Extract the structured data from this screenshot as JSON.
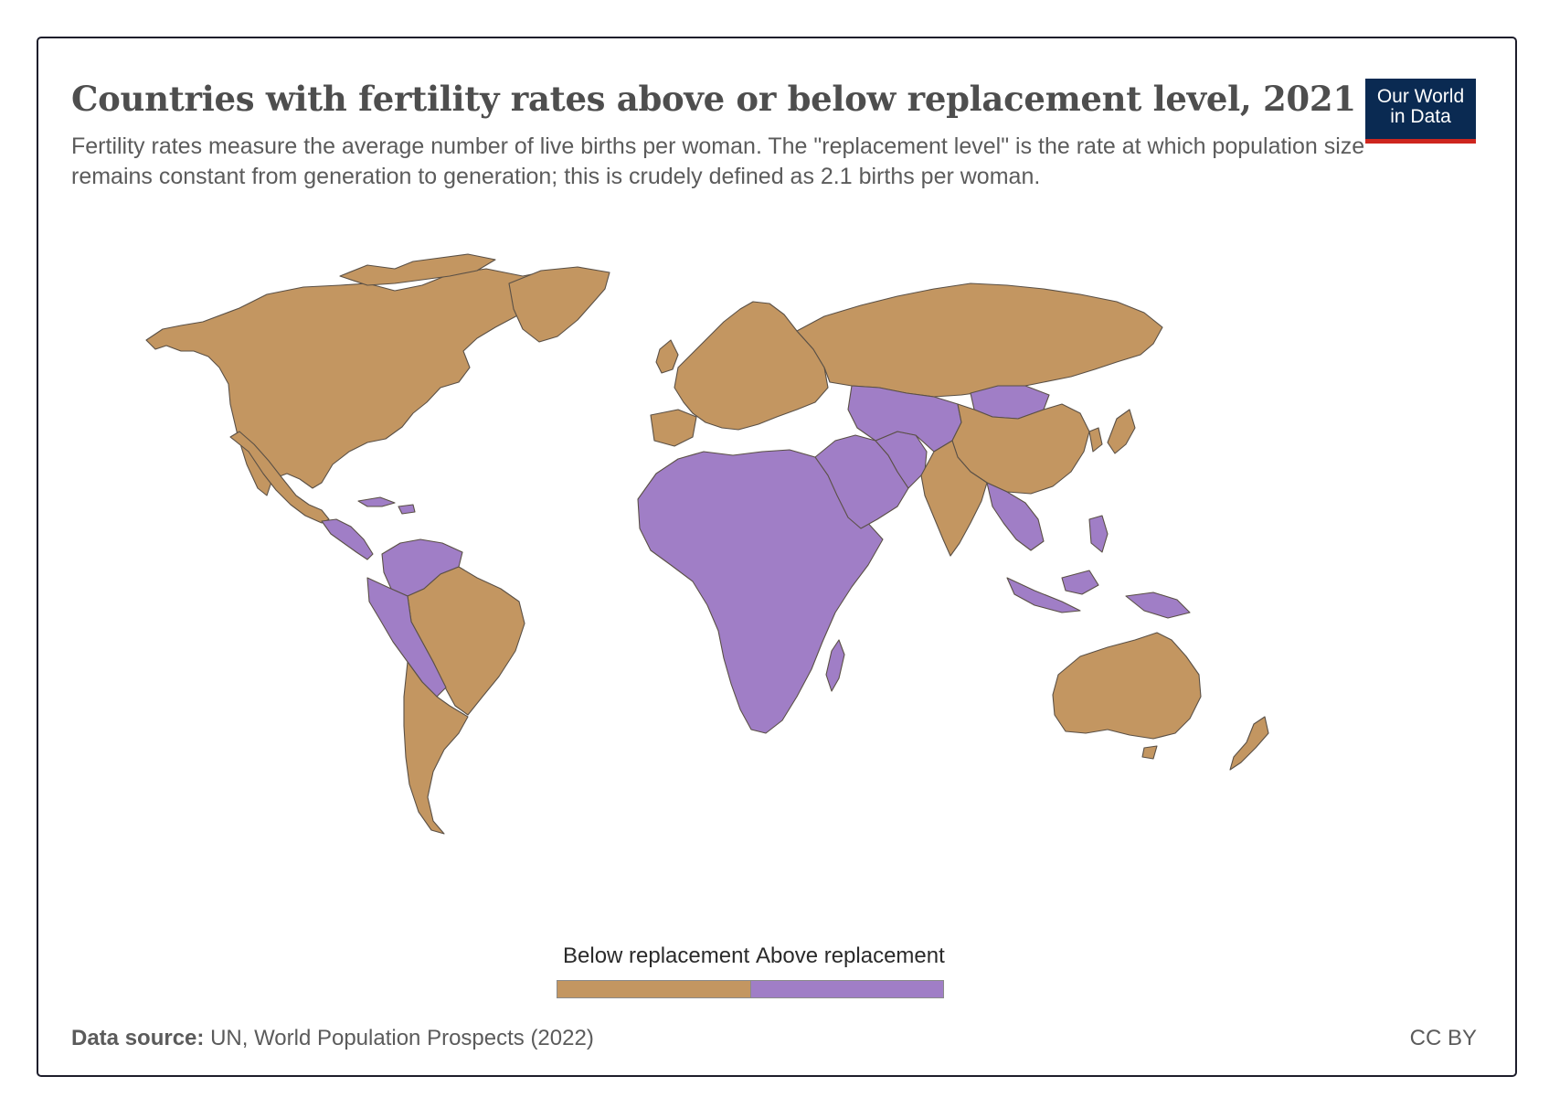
{
  "title": "Countries with fertility rates above or below replacement level, 2021",
  "subtitle": "Fertility rates measure the average number of live births per woman. The \"replacement level\" is the rate at which population size remains constant from generation to generation; this is crudely defined as 2.1 births per woman.",
  "logo": {
    "line1": "Our World",
    "line2": "in Data"
  },
  "legend": {
    "below_label": "Below replacement",
    "above_label": "Above replacement",
    "below_color": "#c39661",
    "above_color": "#a07ec6"
  },
  "footer": {
    "source_label": "Data source:",
    "source_text": "UN, World Population Prospects (2022)",
    "license": "CC BY"
  },
  "map_data": {
    "type": "choropleth",
    "year": 2021,
    "categories": [
      "Below replacement",
      "Above replacement"
    ],
    "regions": [
      {
        "name": "North America",
        "category": "Below replacement"
      },
      {
        "name": "Greenland",
        "category": "Below replacement"
      },
      {
        "name": "Central America",
        "category": "Above replacement"
      },
      {
        "name": "South America (north)",
        "category": "Above replacement"
      },
      {
        "name": "Brazil",
        "category": "Below replacement"
      },
      {
        "name": "Peru and Bolivia",
        "category": "Above replacement"
      },
      {
        "name": "Southern Cone",
        "category": "Below replacement"
      },
      {
        "name": "Europe",
        "category": "Below replacement"
      },
      {
        "name": "Russia",
        "category": "Below replacement"
      },
      {
        "name": "Africa",
        "category": "Above replacement"
      },
      {
        "name": "Middle East",
        "category": "Above replacement"
      },
      {
        "name": "Central Asia",
        "category": "Above replacement"
      },
      {
        "name": "Mongolia",
        "category": "Above replacement"
      },
      {
        "name": "China",
        "category": "Below replacement"
      },
      {
        "name": "India",
        "category": "Below replacement"
      },
      {
        "name": "Southeast Asia",
        "category": "Above replacement"
      },
      {
        "name": "Japan",
        "category": "Below replacement"
      },
      {
        "name": "Australia",
        "category": "Below replacement"
      },
      {
        "name": "New Zealand",
        "category": "Below replacement"
      }
    ]
  }
}
